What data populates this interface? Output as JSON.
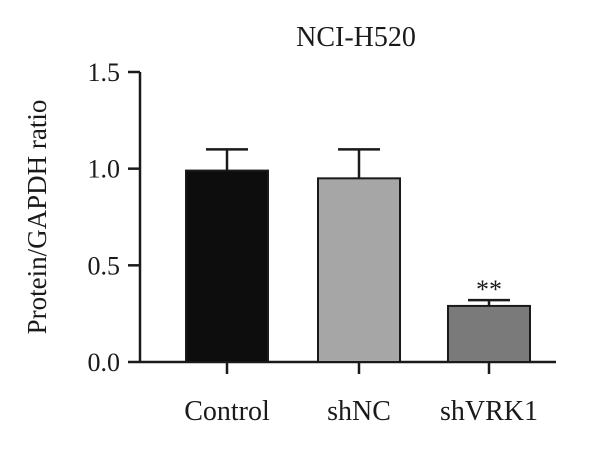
{
  "chart_data": {
    "type": "bar",
    "title": "NCI-H520",
    "xlabel": "",
    "ylabel": "Protein/GAPDH ratio",
    "ylim": [
      0,
      1.5
    ],
    "yticks": [
      0.0,
      0.5,
      1.0,
      1.5
    ],
    "ytick_labels": [
      "0.0",
      "0.5",
      "1.0",
      "1.5"
    ],
    "categories": [
      "Control",
      "shNC",
      "shVRK1"
    ],
    "values": [
      0.99,
      0.95,
      0.29
    ],
    "error_upper": [
      0.11,
      0.15,
      0.03
    ],
    "bar_colors": [
      "#0d0d0d",
      "#a6a6a6",
      "#7a7a7a"
    ],
    "annotations": [
      {
        "category": "shVRK1",
        "text": "**"
      }
    ],
    "grid": false,
    "legend": "none"
  }
}
